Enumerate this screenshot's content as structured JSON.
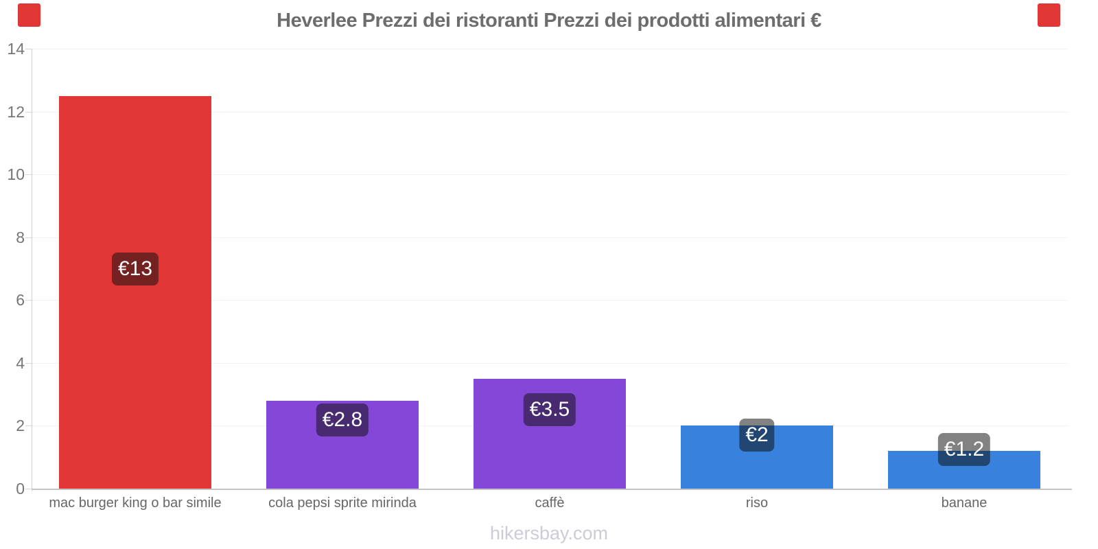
{
  "title": "Heverlee Prezzi dei ristoranti Prezzi dei prodotti alimentari €",
  "footer": "hikersbay.com",
  "decoration": {
    "corner_color": "#e23636"
  },
  "chart_data": {
    "type": "bar",
    "title": "Heverlee Prezzi dei ristoranti Prezzi dei prodotti alimentari €",
    "categories": [
      "mac burger king o bar simile",
      "cola pepsi sprite mirinda",
      "caffè",
      "riso",
      "banane"
    ],
    "values": [
      12.5,
      2.8,
      3.5,
      2,
      1.2
    ],
    "bar_labels": [
      "€13",
      "€2.8",
      "€3.5",
      "€2",
      "€1.2"
    ],
    "bar_colors": [
      "#e23636",
      "#8547d8",
      "#8547d8",
      "#3882de",
      "#3882de"
    ],
    "xlabel": "",
    "ylabel": "",
    "ylim": [
      0,
      14
    ],
    "y_ticks": [
      "0",
      "2",
      "4",
      "6",
      "8",
      "10",
      "12",
      "14"
    ],
    "grid": true,
    "legend": "none",
    "currency": "€",
    "value_label_text_color": "#ffffff",
    "title_color": "#6d6d6d",
    "axis_text_color": "#757575"
  }
}
